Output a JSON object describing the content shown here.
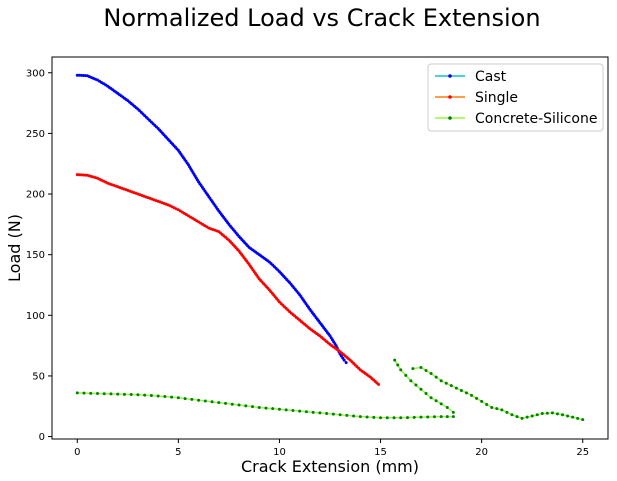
{
  "chart_data": {
    "type": "line",
    "title": "Normalized Load vs Crack Extension",
    "xlabel": "Crack Extension (mm)",
    "ylabel": "Load (N)",
    "xlim": [
      -1.25,
      26.25
    ],
    "ylim": [
      -2,
      313
    ],
    "xticks": [
      0,
      5,
      10,
      15,
      20,
      25
    ],
    "yticks": [
      0,
      50,
      100,
      150,
      200,
      250,
      300
    ],
    "grid": false,
    "legend_position": "top-right",
    "series": [
      {
        "name": "Cast",
        "line_color": "#17becf",
        "marker_color": "#0000ff",
        "segments": [
          [
            [
              0,
              298
            ],
            [
              0.5,
              297.5
            ],
            [
              1,
              294
            ],
            [
              1.5,
              289
            ],
            [
              2,
              283
            ],
            [
              2.5,
              277
            ],
            [
              3,
              270
            ],
            [
              3.5,
              262
            ],
            [
              4,
              254
            ],
            [
              4.5,
              245
            ],
            [
              5,
              236
            ],
            [
              5.5,
              224
            ],
            [
              6,
              210
            ],
            [
              6.5,
              198
            ],
            [
              7,
              186
            ],
            [
              7.5,
              175
            ],
            [
              8,
              165
            ],
            [
              8.5,
              156
            ],
            [
              9,
              150
            ],
            [
              9.5,
              144
            ],
            [
              10,
              136
            ],
            [
              10.5,
              127
            ],
            [
              11,
              117
            ],
            [
              11.5,
              105
            ],
            [
              12,
              94
            ],
            [
              12.5,
              83
            ],
            [
              12.8,
              75
            ],
            [
              13,
              68
            ],
            [
              13.2,
              63
            ],
            [
              13.3,
              61
            ]
          ]
        ]
      },
      {
        "name": "Single",
        "line_color": "#ff7f0e",
        "marker_color": "#ff0000",
        "segments": [
          [
            [
              0,
              216
            ],
            [
              0.5,
              215.5
            ],
            [
              1,
              213
            ],
            [
              1.5,
              209
            ],
            [
              2,
              206
            ],
            [
              2.5,
              203
            ],
            [
              3,
              200
            ],
            [
              3.5,
              197
            ],
            [
              4,
              194
            ],
            [
              4.5,
              191
            ],
            [
              5,
              187
            ],
            [
              5.5,
              182
            ],
            [
              6,
              177
            ],
            [
              6.5,
              172
            ],
            [
              7,
              169
            ],
            [
              7.5,
              162
            ],
            [
              8,
              153
            ],
            [
              8.5,
              142
            ],
            [
              9,
              130
            ],
            [
              9.5,
              121
            ],
            [
              10,
              111
            ],
            [
              10.5,
              103
            ],
            [
              11,
              96
            ],
            [
              11.5,
              89
            ],
            [
              12,
              83
            ],
            [
              12.5,
              76
            ],
            [
              13,
              70
            ],
            [
              13.5,
              63
            ],
            [
              14,
              55
            ],
            [
              14.5,
              49
            ],
            [
              14.9,
              43
            ]
          ]
        ]
      },
      {
        "name": "Concrete-Silicone",
        "line_color": "#98f542",
        "marker_color": "#008000",
        "segments": [
          [
            [
              0,
              36
            ],
            [
              1,
              35.5
            ],
            [
              2,
              35
            ],
            [
              3,
              34.5
            ],
            [
              4,
              33.5
            ],
            [
              5,
              32
            ],
            [
              6,
              30
            ],
            [
              7,
              28
            ],
            [
              8,
              26
            ],
            [
              9,
              24
            ],
            [
              10,
              22.5
            ],
            [
              11,
              21
            ],
            [
              12,
              19.5
            ],
            [
              13,
              18
            ],
            [
              14,
              16.5
            ],
            [
              15,
              15.5
            ],
            [
              16,
              15.5
            ],
            [
              17,
              16
            ],
            [
              18,
              16.5
            ],
            [
              18.6,
              16.5
            ]
          ],
          [
            [
              15.7,
              63
            ],
            [
              16,
              55
            ],
            [
              16.5,
              46
            ],
            [
              17,
              39
            ],
            [
              17.5,
              32
            ],
            [
              18,
              27
            ],
            [
              18.3,
              24
            ],
            [
              18.6,
              20
            ]
          ],
          [
            [
              16.6,
              56
            ],
            [
              17,
              57
            ],
            [
              17.5,
              52
            ],
            [
              18,
              46
            ],
            [
              18.5,
              42
            ],
            [
              19,
              38
            ],
            [
              19.5,
              34
            ],
            [
              20,
              29
            ],
            [
              20.5,
              24
            ],
            [
              21,
              22
            ],
            [
              21.5,
              18
            ],
            [
              22,
              15
            ],
            [
              22.5,
              17
            ],
            [
              23,
              19
            ],
            [
              23.5,
              19.5
            ],
            [
              24,
              18
            ],
            [
              24.5,
              16
            ],
            [
              25,
              14
            ]
          ]
        ]
      }
    ]
  }
}
